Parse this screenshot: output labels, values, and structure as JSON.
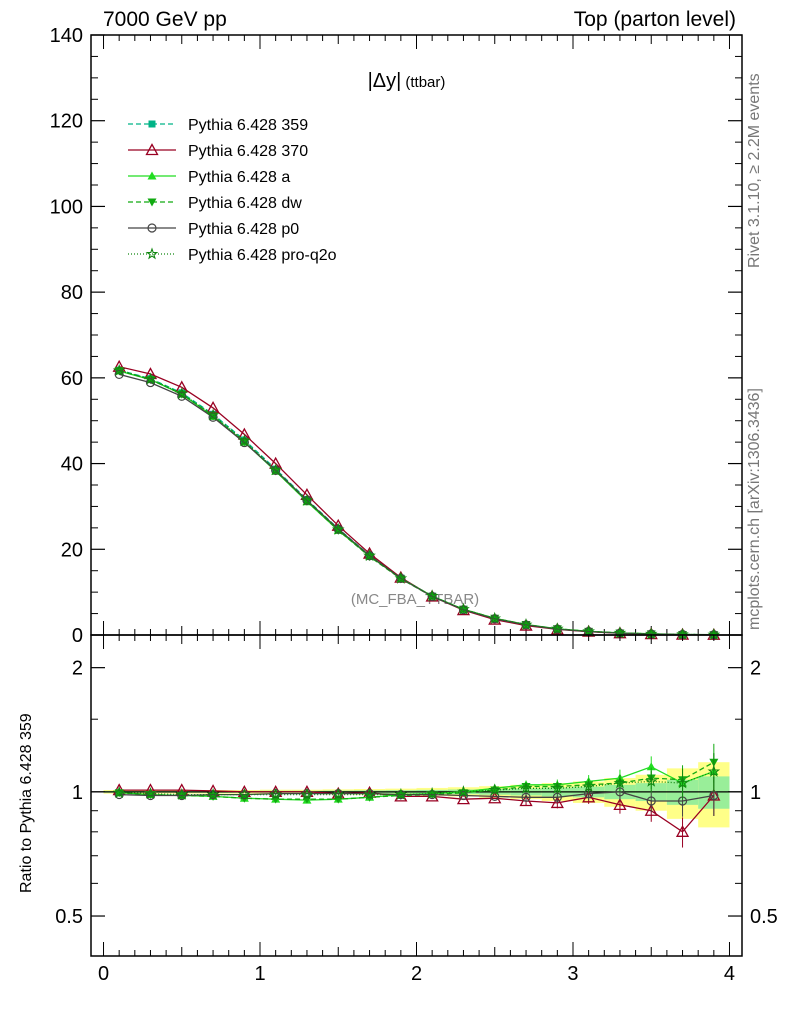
{
  "header": {
    "left": "7000 GeV pp",
    "right": "Top (parton level)"
  },
  "side_text": {
    "rivet": "Rivet 3.1.10, ≥ 2.2M events",
    "mcplots": "mcplots.cern.ch [arXiv:1306.3436]"
  },
  "colors": {
    "c359": "#00b386",
    "c370": "#990022",
    "ca": "#22dd22",
    "cdw": "#11aa11",
    "cp0": "#444444",
    "cq2o": "#118811",
    "band_outer": "#ffff88",
    "band_inner": "#99ee99"
  },
  "chart_data": [
    {
      "type": "line",
      "title": "|Δy| (ttbar)",
      "title_main": "|Δy|",
      "title_sub": "(ttbar)",
      "analysis_label": "(MC_FBA_TTBAR)",
      "xlabel": "",
      "ylabel": "",
      "xlim": [
        -0.08,
        4.08
      ],
      "ylim": [
        0,
        140
      ],
      "yticks": [
        0,
        20,
        40,
        60,
        80,
        100,
        120,
        140
      ],
      "x": [
        0.1,
        0.3,
        0.5,
        0.7,
        0.9,
        1.1,
        1.3,
        1.5,
        1.7,
        1.9,
        2.1,
        2.3,
        2.5,
        2.7,
        2.9,
        3.1,
        3.3,
        3.5,
        3.7,
        3.9
      ],
      "series": [
        {
          "name": "Pythia 6.428 359",
          "marker": "square",
          "dash": "5,3",
          "values": [
            61.8,
            59.8,
            56.5,
            51.5,
            45.5,
            38.7,
            31.6,
            24.8,
            18.6,
            13.3,
            9.1,
            6.0,
            3.8,
            2.35,
            1.4,
            0.82,
            0.45,
            0.24,
            0.12,
            0.06
          ]
        },
        {
          "name": "Pythia 6.428 370",
          "marker": "triangle-open",
          "dash": "",
          "values": [
            62.6,
            60.9,
            57.8,
            53.0,
            46.8,
            40.0,
            32.7,
            25.5,
            19.0,
            13.4,
            9.0,
            5.8,
            3.6,
            2.2,
            1.3,
            0.78,
            0.42,
            0.21,
            0.1,
            0.05
          ]
        },
        {
          "name": "Pythia 6.428 a",
          "marker": "triangle",
          "dash": "",
          "values": [
            61.6,
            59.6,
            56.2,
            51.0,
            45.0,
            38.2,
            31.1,
            24.4,
            18.4,
            13.2,
            9.1,
            6.0,
            3.9,
            2.45,
            1.45,
            0.86,
            0.49,
            0.27,
            0.12,
            0.07
          ]
        },
        {
          "name": "Pythia 6.428 dw",
          "marker": "triangle-down",
          "dash": "5,3",
          "values": [
            61.7,
            59.6,
            56.2,
            51.1,
            45.1,
            38.3,
            31.2,
            24.4,
            18.3,
            13.1,
            9.0,
            6.0,
            3.9,
            2.45,
            1.45,
            0.86,
            0.48,
            0.26,
            0.12,
            0.07
          ]
        },
        {
          "name": "Pythia 6.428 p0",
          "marker": "circle-open",
          "dash": "",
          "values": [
            60.8,
            58.9,
            55.7,
            50.8,
            44.9,
            38.4,
            31.4,
            24.7,
            18.5,
            13.2,
            9.0,
            5.9,
            3.8,
            2.35,
            1.38,
            0.81,
            0.45,
            0.23,
            0.11,
            0.06
          ]
        },
        {
          "name": "Pythia 6.428 pro-q2o",
          "marker": "star-open",
          "dash": "1,2",
          "values": [
            61.7,
            59.7,
            56.3,
            51.3,
            45.3,
            38.5,
            31.4,
            24.6,
            18.5,
            13.2,
            9.1,
            6.0,
            3.85,
            2.4,
            1.43,
            0.84,
            0.47,
            0.25,
            0.12,
            0.07
          ]
        }
      ]
    },
    {
      "type": "line",
      "title": "",
      "xlabel": "",
      "ylabel": "Ratio to Pythia 6.428 359",
      "xlim": [
        -0.08,
        4.08
      ],
      "ylim": [
        0.4,
        2.4
      ],
      "ylog": true,
      "yticks": [
        0.5,
        1,
        2
      ],
      "xticks": [
        0,
        1,
        2,
        3,
        4
      ],
      "x": [
        0.1,
        0.3,
        0.5,
        0.7,
        0.9,
        1.1,
        1.3,
        1.5,
        1.7,
        1.9,
        2.1,
        2.3,
        2.5,
        2.7,
        2.9,
        3.1,
        3.3,
        3.5,
        3.7,
        3.9
      ],
      "band_half_width": [
        0.005,
        0.005,
        0.005,
        0.005,
        0.005,
        0.006,
        0.006,
        0.007,
        0.008,
        0.009,
        0.011,
        0.013,
        0.016,
        0.02,
        0.025,
        0.03,
        0.04,
        0.05,
        0.07,
        0.09
      ],
      "series": [
        {
          "name": "Pythia 6.428 359",
          "marker": "",
          "values": [
            1,
            1,
            1,
            1,
            1,
            1,
            1,
            1,
            1,
            1,
            1,
            1,
            1,
            1,
            1,
            1,
            1,
            1,
            1,
            1
          ]
        },
        {
          "name": "Pythia 6.428 370",
          "marker": "triangle-open",
          "values": [
            1.01,
            1.01,
            1.01,
            1.005,
            1.0,
            1.0,
            1.0,
            0.99,
            0.995,
            0.975,
            0.975,
            0.96,
            0.965,
            0.95,
            0.94,
            0.97,
            0.93,
            0.9,
            0.8,
            0.98
          ]
        },
        {
          "name": "Pythia 6.428 a",
          "marker": "triangle",
          "values": [
            0.995,
            0.985,
            0.98,
            0.975,
            0.965,
            0.96,
            0.955,
            0.96,
            0.97,
            0.985,
            0.99,
            1.0,
            1.02,
            1.04,
            1.04,
            1.06,
            1.08,
            1.15,
            1.05,
            1.12
          ]
        },
        {
          "name": "Pythia 6.428 dw",
          "marker": "triangle-down",
          "values": [
            0.995,
            0.985,
            0.98,
            0.975,
            0.965,
            0.96,
            0.96,
            0.96,
            0.97,
            0.98,
            0.985,
            0.995,
            1.01,
            1.03,
            1.03,
            1.04,
            1.05,
            1.08,
            1.07,
            1.18
          ]
        },
        {
          "name": "Pythia 6.428 p0",
          "marker": "circle-open",
          "values": [
            0.985,
            0.98,
            0.98,
            0.985,
            0.985,
            0.99,
            0.99,
            0.99,
            0.99,
            0.985,
            0.985,
            0.98,
            0.975,
            0.97,
            0.97,
            0.99,
            1.0,
            0.95,
            0.95,
            0.98
          ]
        },
        {
          "name": "Pythia 6.428 pro-q2o",
          "marker": "star-open",
          "values": [
            0.995,
            0.99,
            0.985,
            0.985,
            0.985,
            0.985,
            0.985,
            0.985,
            0.985,
            0.985,
            0.99,
            1.0,
            1.01,
            1.02,
            1.02,
            1.03,
            1.05,
            1.06,
            1.05,
            1.12
          ]
        }
      ]
    }
  ]
}
